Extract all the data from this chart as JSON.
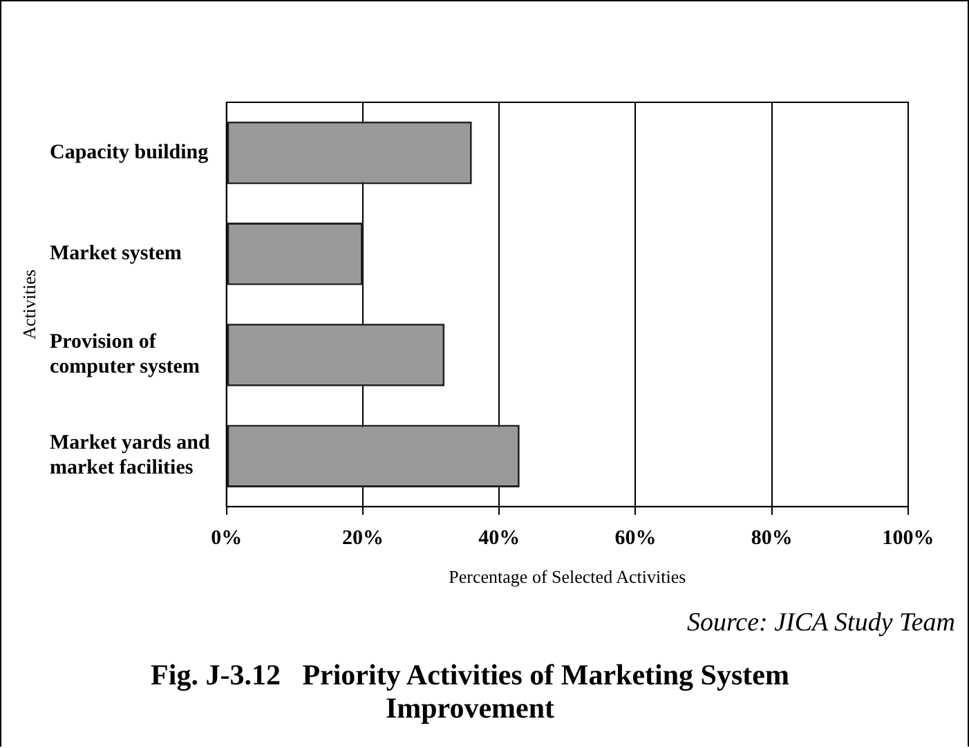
{
  "chart_data": {
    "type": "bar",
    "orientation": "horizontal",
    "title": "Fig. J-3.12   Priority Activities of Marketing System Improvement",
    "xlabel": "Percentage of Selected Activities",
    "ylabel": "Activities",
    "categories": [
      "Capacity building",
      "Market system",
      "Provision of computer system",
      "Market yards and market facilities"
    ],
    "values": [
      36,
      20,
      32,
      43
    ],
    "color": "#999999",
    "xlim": [
      0,
      100
    ],
    "xticks": [
      {
        "value": 0,
        "label": "0%"
      },
      {
        "value": 20,
        "label": "20%"
      },
      {
        "value": 40,
        "label": "40%"
      },
      {
        "value": 60,
        "label": "60%"
      },
      {
        "value": 80,
        "label": "80%"
      },
      {
        "value": 100,
        "label": "100%"
      }
    ],
    "grid": "x",
    "legend": false,
    "annotations": [
      "Source: JICA Study Team"
    ]
  }
}
